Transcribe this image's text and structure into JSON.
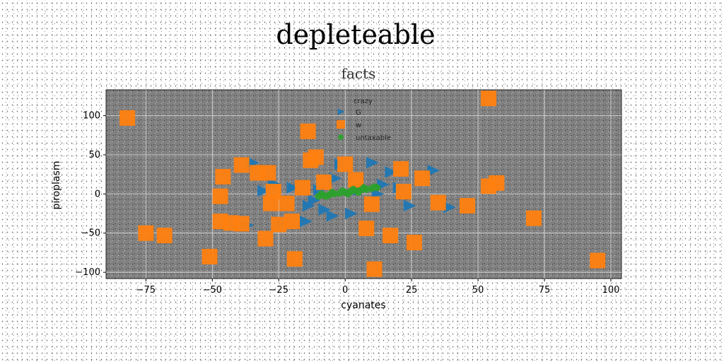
{
  "chart_data": {
    "type": "scatter",
    "title": "depleteable",
    "subtitle": "facts",
    "xlabel": "cyanates",
    "ylabel": "piroplasm",
    "xlim": [
      -90,
      104
    ],
    "ylim": [
      -108,
      133
    ],
    "xticks": [
      -75,
      -50,
      -25,
      0,
      25,
      50,
      75,
      100
    ],
    "yticks": [
      -100,
      -50,
      0,
      50,
      100
    ],
    "grid": true,
    "legend": {
      "title": "crazy",
      "placement": "top-center"
    },
    "colors": {
      "G": "#1f77b4",
      "w": "#ff7f0e",
      "untaxable": "#2ca02c",
      "plot_bg": "#808080"
    },
    "series": [
      {
        "name": "G",
        "marker": "triangle-right",
        "points": [
          [
            -37,
            -40
          ],
          [
            -31,
            4
          ],
          [
            -27,
            13
          ],
          [
            -20,
            8
          ],
          [
            -35,
            40
          ],
          [
            -24,
            -38
          ],
          [
            -14,
            -15
          ],
          [
            -12,
            -8
          ],
          [
            -8,
            -20
          ],
          [
            -15,
            -35
          ],
          [
            -5,
            -28
          ],
          [
            2,
            -25
          ],
          [
            -10,
            5
          ],
          [
            -4,
            20
          ],
          [
            10,
            40
          ],
          [
            17,
            28
          ],
          [
            14,
            12
          ],
          [
            20,
            8
          ],
          [
            33,
            30
          ],
          [
            24,
            -15
          ],
          [
            39,
            -17
          ],
          [
            12,
            0
          ],
          [
            5,
            5
          ],
          [
            -2,
            38
          ]
        ]
      },
      {
        "name": "w",
        "marker": "square",
        "points": [
          [
            -82,
            97
          ],
          [
            -75,
            -50
          ],
          [
            -68,
            -53
          ],
          [
            -51,
            -80
          ],
          [
            -47,
            -35
          ],
          [
            -47,
            -3
          ],
          [
            -46,
            22
          ],
          [
            -43,
            -37
          ],
          [
            -39,
            -38
          ],
          [
            -39,
            37
          ],
          [
            -33,
            27
          ],
          [
            -29,
            27
          ],
          [
            -30,
            -57
          ],
          [
            -27,
            3
          ],
          [
            -28,
            -12
          ],
          [
            -25,
            -39
          ],
          [
            -22,
            -12
          ],
          [
            -20,
            -35
          ],
          [
            -19,
            -83
          ],
          [
            -16,
            8
          ],
          [
            -14,
            80
          ],
          [
            -13,
            43
          ],
          [
            -11,
            47
          ],
          [
            -8,
            15
          ],
          [
            0,
            38
          ],
          [
            4,
            18
          ],
          [
            10,
            -13
          ],
          [
            8,
            -44
          ],
          [
            11,
            -96
          ],
          [
            17,
            -53
          ],
          [
            21,
            32
          ],
          [
            22,
            3
          ],
          [
            26,
            -62
          ],
          [
            29,
            20
          ],
          [
            35,
            -11
          ],
          [
            46,
            -15
          ],
          [
            54,
            122
          ],
          [
            54,
            10
          ],
          [
            57,
            14
          ],
          [
            71,
            -31
          ],
          [
            95,
            -85
          ]
        ]
      },
      {
        "name": "untaxable",
        "marker": "circle",
        "points": [
          [
            -10,
            -3
          ],
          [
            -8,
            -2
          ],
          [
            -6,
            -1
          ],
          [
            -4,
            0
          ],
          [
            -2,
            1
          ],
          [
            0,
            2
          ],
          [
            2,
            3
          ],
          [
            4,
            4
          ],
          [
            6,
            5
          ],
          [
            8,
            6
          ],
          [
            10,
            7
          ],
          [
            12,
            8
          ],
          [
            -9,
            0
          ],
          [
            -5,
            2
          ],
          [
            -1,
            4
          ],
          [
            3,
            6
          ],
          [
            7,
            8
          ],
          [
            11,
            9
          ],
          [
            -7,
            -3
          ],
          [
            1,
            0
          ],
          [
            5,
            2
          ]
        ]
      }
    ]
  }
}
